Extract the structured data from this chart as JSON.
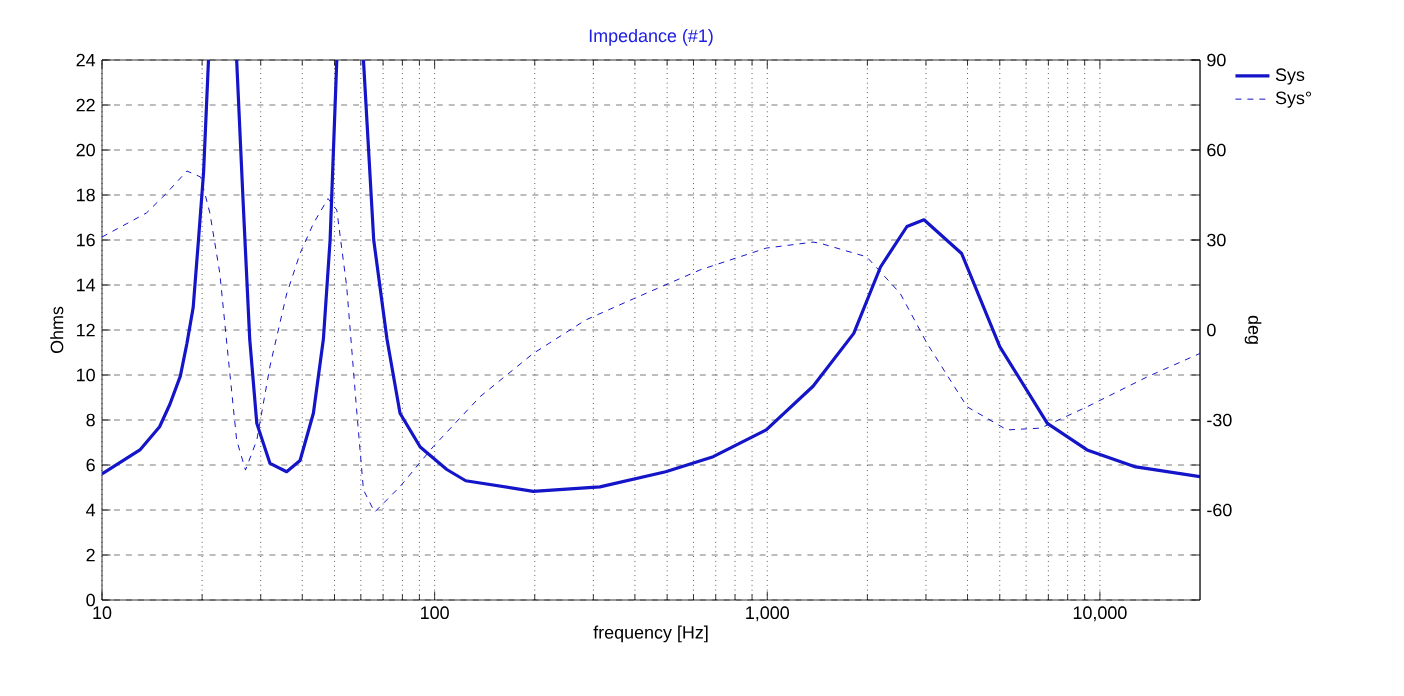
{
  "chart_data": {
    "type": "line",
    "title": "Impedance (#1)",
    "xlabel": "frequency [Hz]",
    "ylabel": "Ohms",
    "y2label": "deg",
    "log": "x",
    "grid": true,
    "legend": "top right",
    "xlim": [
      10,
      20000
    ],
    "xticks": [
      10,
      100,
      {
        "value": 1000,
        "label": "1,000"
      },
      {
        "value": 10000,
        "label": "10,000"
      }
    ],
    "ylim": [
      0,
      24
    ],
    "yticks": [
      0,
      2,
      4,
      6,
      8,
      10,
      12,
      14,
      16,
      18,
      20,
      22,
      24
    ],
    "y2lim": [
      -90,
      90
    ],
    "y2ticks": [
      -60,
      -30,
      0,
      30,
      60,
      90
    ],
    "series": [
      {
        "name": "Sys",
        "color": "#1414c8",
        "line_style": "solid",
        "x": [
          10,
          13,
          14.9,
          16,
          17.2,
          18,
          18.8,
          19.5,
          20.2,
          20.9,
          23,
          25.4,
          26.6,
          27.8,
          29.2,
          32,
          35.9,
          39.4,
          43.2,
          46.3,
          48.5,
          50.8,
          56,
          61.1,
          65.6,
          71.9,
          78.7,
          90.5,
          108.8,
          124,
          137,
          198,
          314,
          495,
          688,
          993,
          1373,
          1820,
          2190,
          2630,
          2960,
          3840,
          5000,
          6950,
          9150,
          12690,
          20000
        ],
        "values": [
          5.6,
          6.67,
          7.7,
          8.7,
          9.95,
          11.4,
          13.0,
          16.0,
          19.0,
          24.0,
          null,
          24.0,
          17.5,
          11.6,
          7.85,
          6.07,
          5.7,
          6.2,
          8.3,
          11.6,
          16.0,
          24.0,
          null,
          24.0,
          16.0,
          11.6,
          8.3,
          6.8,
          5.8,
          5.3,
          5.2,
          4.83,
          5.03,
          5.7,
          6.37,
          7.56,
          9.5,
          11.85,
          14.8,
          16.6,
          16.9,
          15.4,
          11.26,
          7.85,
          6.67,
          5.93,
          5.48
        ]
      },
      {
        "name": "Sys°",
        "color": "#1414c8",
        "line_style": "dashed",
        "axis": "y2",
        "x": [
          10,
          13.6,
          15.6,
          18,
          19.8,
          21.1,
          22.6,
          24,
          25.4,
          27,
          29.2,
          32,
          35.9,
          39.4,
          43.2,
          47.8,
          50.8,
          54.4,
          58.4,
          61.1,
          66,
          78.7,
          99,
          137,
          198,
          284,
          396,
          627,
          993,
          1373,
          1444,
          1990,
          2510,
          3020,
          3990,
          5260,
          6640,
          9150,
          13890,
          20000
        ],
        "values": [
          31,
          39,
          45.5,
          53,
          51,
          39,
          19,
          -10,
          -36.7,
          -46.7,
          -36.7,
          -12,
          12,
          25.5,
          35.5,
          43.8,
          40,
          14.5,
          -27.8,
          -53.3,
          -60.7,
          -52.2,
          -38.9,
          -22.2,
          -7.8,
          3.3,
          10.4,
          20,
          27.3,
          29.3,
          28.9,
          24.4,
          12.2,
          -4.4,
          -25.6,
          -33.3,
          -32.7,
          -25.6,
          -15.6,
          -7.8
        ]
      }
    ]
  }
}
